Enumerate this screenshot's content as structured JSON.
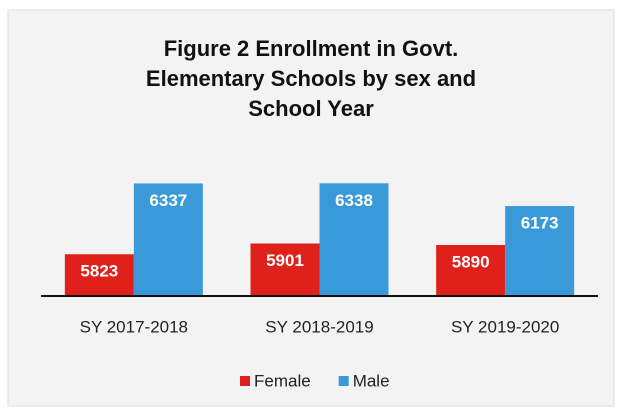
{
  "chart_data": {
    "type": "bar",
    "title": "Figure 2 Enrollment in Govt. Elementary Schools by sex and School Year",
    "categories": [
      "SY 2017-2018",
      "SY 2018-2019",
      "SY 2019-2020"
    ],
    "series": [
      {
        "name": "Female",
        "color": "#e0201b",
        "values": [
          5823,
          5901,
          5890
        ]
      },
      {
        "name": "Male",
        "color": "#3a9ad9",
        "values": [
          6337,
          6338,
          6173
        ]
      }
    ],
    "ylim": [
      5520,
      6420
    ],
    "legend": "bottom"
  }
}
